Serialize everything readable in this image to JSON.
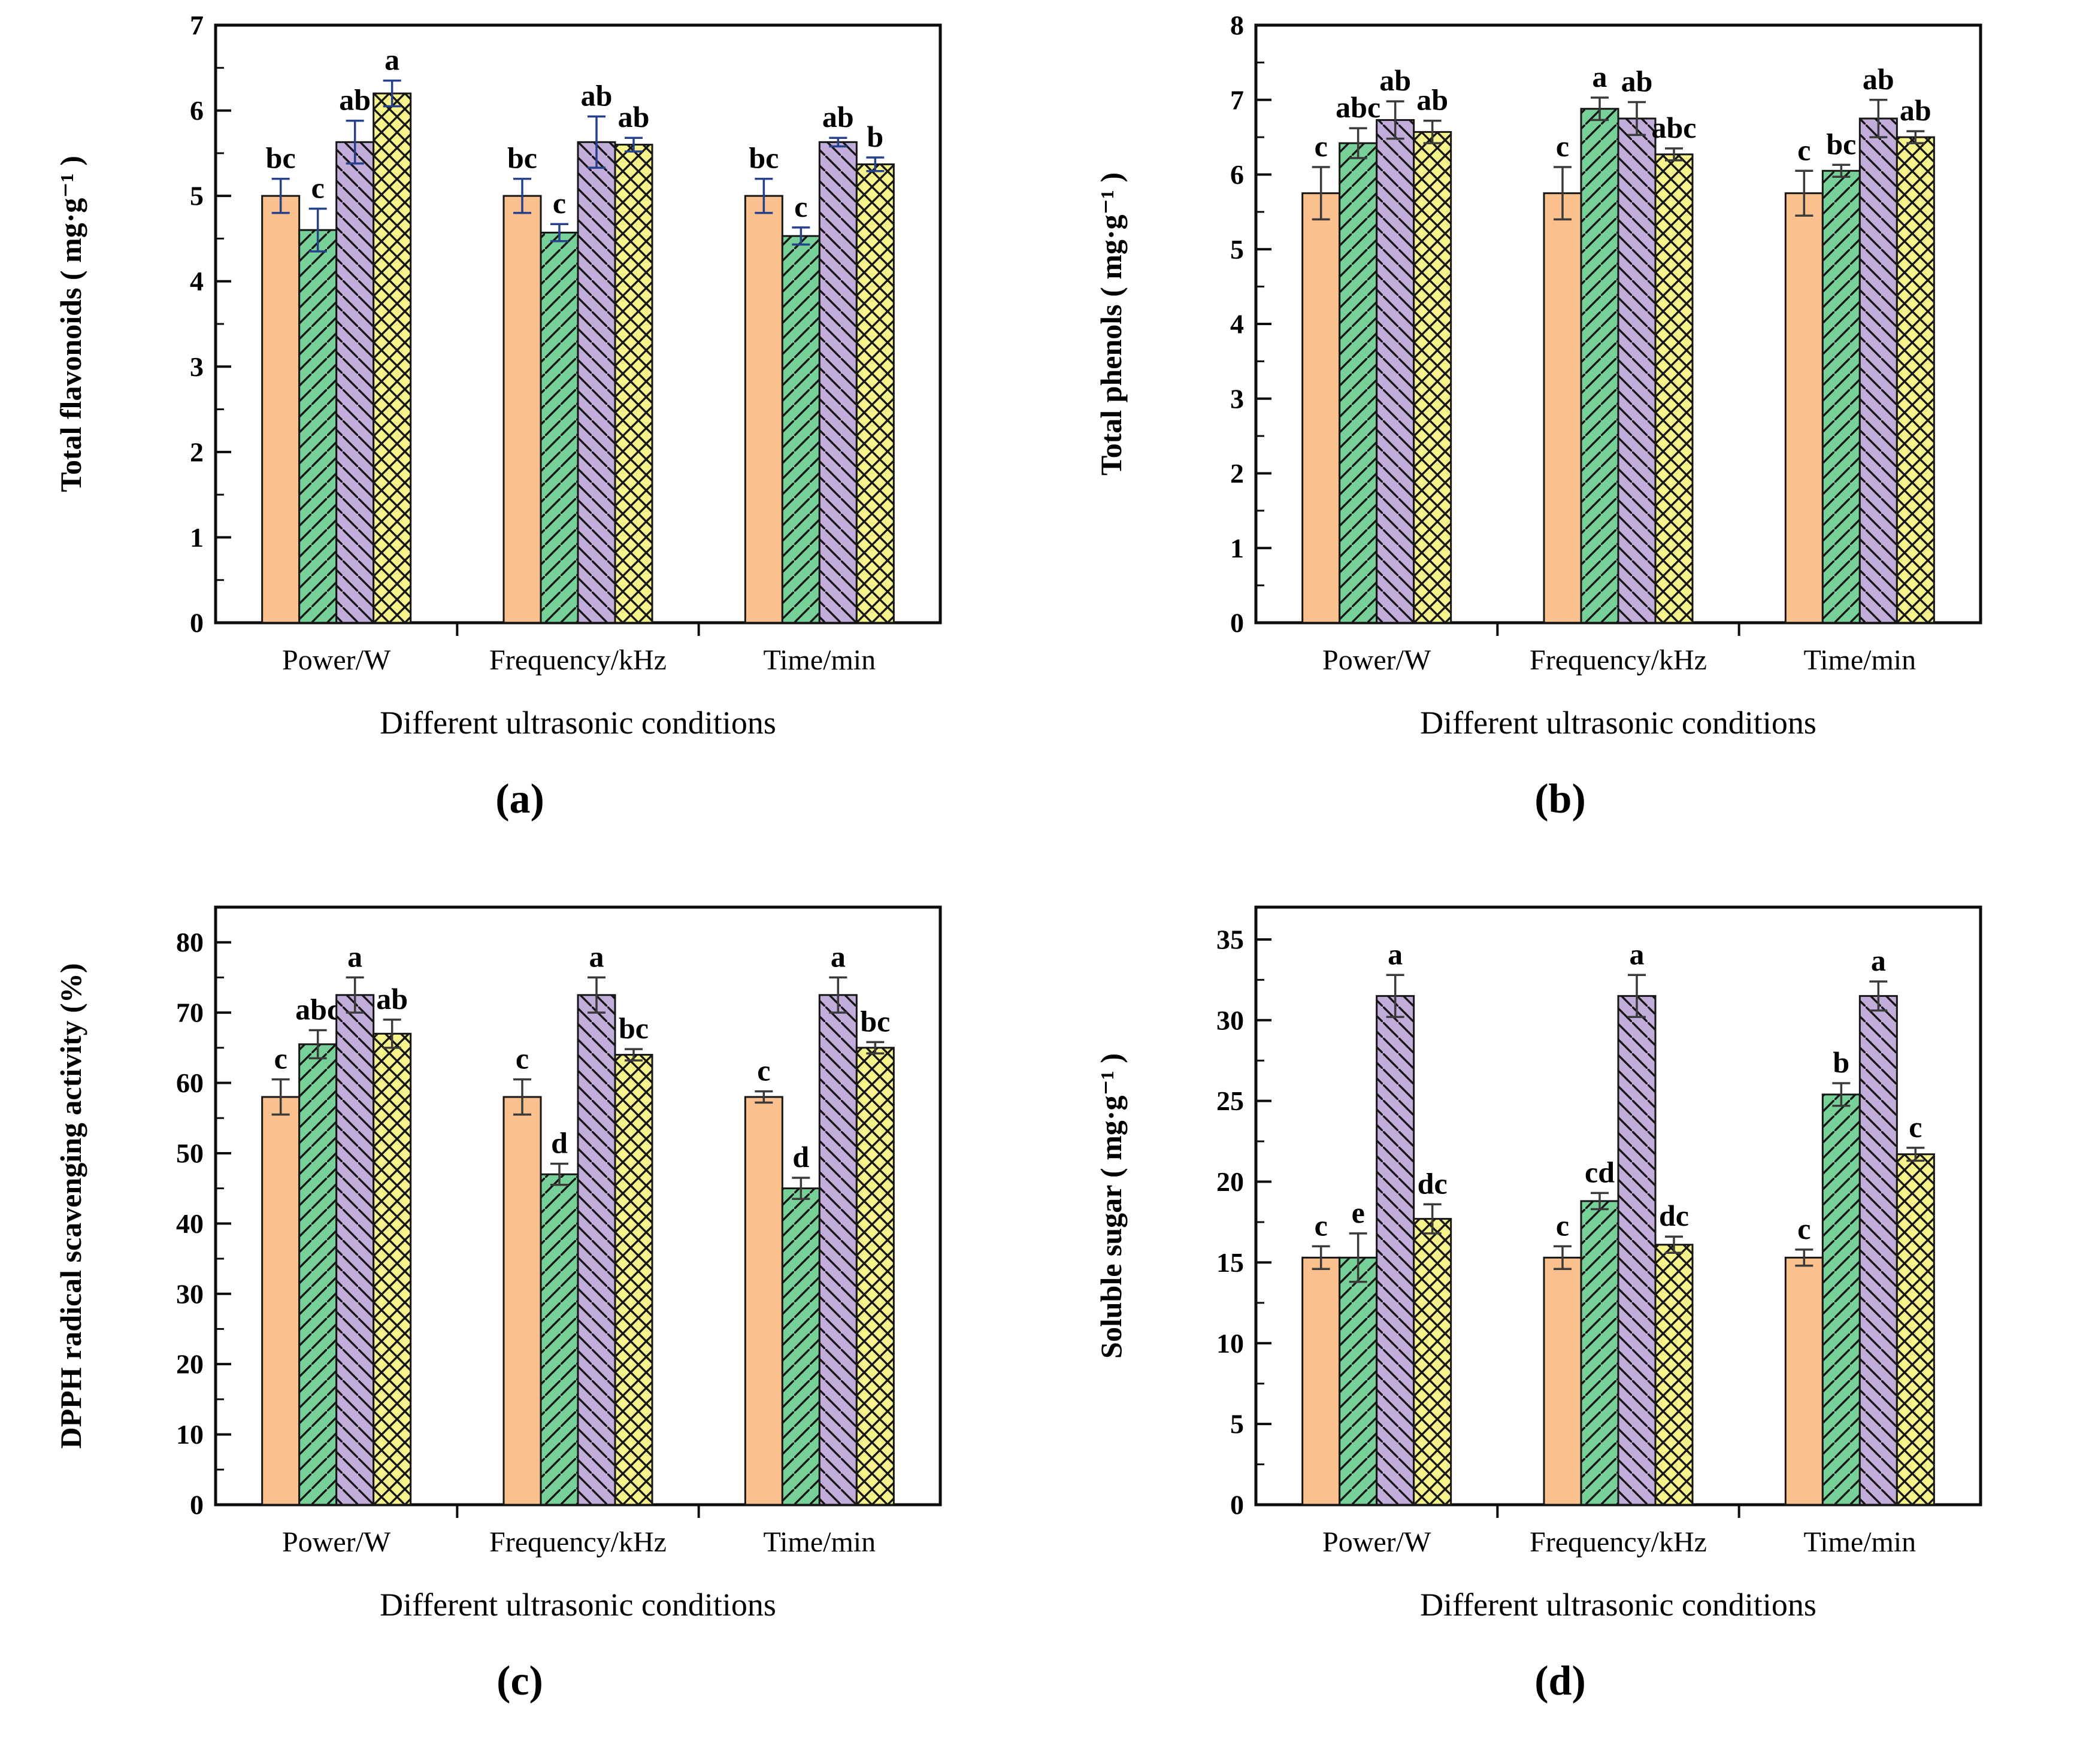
{
  "figure": {
    "captions": {
      "a": "(a)",
      "b": "(b)",
      "c": "(c)",
      "d": "(d)"
    },
    "xlabel": "Different ultrasonic conditions",
    "categories": [
      "Power/W",
      "Frequency/kHz",
      "Time/min"
    ],
    "style": {
      "axis_color": "#0d0d0d",
      "bar_stroke": "#161616",
      "hatch_color": "#151515",
      "text_color": "#000000",
      "series_colors": {
        "orange-solid": "#FAC18E",
        "green-diagonal": "#77D098",
        "purple-diagonal": "#C2ADDA",
        "yellow-crosshatch": "#F7F38C"
      }
    }
  },
  "chart_data": [
    {
      "id": "a",
      "type": "bar",
      "title": "",
      "ylabel": "Total flavonoids ( mg·g⁻¹ )",
      "xlabel": "Different ultrasonic conditions",
      "categories": [
        "Power/W",
        "Frequency/kHz",
        "Time/min"
      ],
      "ylim": [
        0,
        7
      ],
      "yticks": {
        "max": 7,
        "step": 1,
        "minor": 0.5
      },
      "grid": false,
      "legend": "none",
      "error_color": "#27408B",
      "series": [
        {
          "name": "orange-solid",
          "hatch": "none",
          "values": [
            5.0,
            5.0,
            5.0
          ],
          "errors": [
            0.2,
            0.2,
            0.2
          ],
          "letters": [
            "bc",
            "bc",
            "bc"
          ]
        },
        {
          "name": "green-diagonal",
          "hatch": "fwd",
          "values": [
            4.6,
            4.57,
            4.53
          ],
          "errors": [
            0.25,
            0.1,
            0.1
          ],
          "letters": [
            "c",
            "c",
            "c"
          ]
        },
        {
          "name": "purple-diagonal",
          "hatch": "back",
          "values": [
            5.63,
            5.63,
            5.63
          ],
          "errors": [
            0.25,
            0.3,
            0.05
          ],
          "letters": [
            "ab",
            "ab",
            "ab"
          ]
        },
        {
          "name": "yellow-crosshatch",
          "hatch": "cross",
          "values": [
            6.2,
            5.6,
            5.37
          ],
          "errors": [
            0.15,
            0.08,
            0.08
          ],
          "letters": [
            "a",
            "ab",
            "b"
          ]
        }
      ]
    },
    {
      "id": "b",
      "type": "bar",
      "title": "",
      "ylabel": "Total phenols ( mg·g⁻¹ )",
      "xlabel": "Different ultrasonic conditions",
      "categories": [
        "Power/W",
        "Frequency/kHz",
        "Time/min"
      ],
      "ylim": [
        0,
        8
      ],
      "yticks": {
        "max": 8,
        "step": 1,
        "minor": 0.5
      },
      "grid": false,
      "legend": "none",
      "error_color": "#3A3A3A",
      "series": [
        {
          "name": "orange-solid",
          "hatch": "none",
          "values": [
            5.75,
            5.75,
            5.75
          ],
          "errors": [
            0.35,
            0.35,
            0.3
          ],
          "letters": [
            "c",
            "c",
            "c"
          ]
        },
        {
          "name": "green-diagonal",
          "hatch": "fwd",
          "values": [
            6.42,
            6.88,
            6.05
          ],
          "errors": [
            0.2,
            0.15,
            0.08
          ],
          "letters": [
            "abc",
            "a",
            "bc"
          ]
        },
        {
          "name": "purple-diagonal",
          "hatch": "back",
          "values": [
            6.73,
            6.75,
            6.75
          ],
          "errors": [
            0.25,
            0.22,
            0.25
          ],
          "letters": [
            "ab",
            "ab",
            "ab"
          ]
        },
        {
          "name": "yellow-crosshatch",
          "hatch": "cross",
          "values": [
            6.57,
            6.27,
            6.5
          ],
          "errors": [
            0.15,
            0.08,
            0.08
          ],
          "letters": [
            "ab",
            "abc",
            "ab"
          ]
        }
      ]
    },
    {
      "id": "c",
      "type": "bar",
      "title": "",
      "ylabel": "DPPH radical scavenging activity (%)",
      "xlabel": "Different ultrasonic conditions",
      "categories": [
        "Power/W",
        "Frequency/kHz",
        "Time/min"
      ],
      "ylim": [
        0,
        85
      ],
      "yticks": {
        "max": 80,
        "step": 10,
        "minor": 5
      },
      "grid": false,
      "legend": "none",
      "error_color": "#3A3A3A",
      "series": [
        {
          "name": "orange-solid",
          "hatch": "none",
          "values": [
            58,
            58,
            58
          ],
          "errors": [
            2.5,
            2.5,
            0.8
          ],
          "letters": [
            "c",
            "c",
            "c"
          ]
        },
        {
          "name": "green-diagonal",
          "hatch": "fwd",
          "values": [
            65.5,
            47,
            45
          ],
          "errors": [
            2.0,
            1.5,
            1.5
          ],
          "letters": [
            "abc",
            "d",
            "d"
          ]
        },
        {
          "name": "purple-diagonal",
          "hatch": "back",
          "values": [
            72.5,
            72.5,
            72.5
          ],
          "errors": [
            2.5,
            2.5,
            2.5
          ],
          "letters": [
            "a",
            "a",
            "a"
          ]
        },
        {
          "name": "yellow-crosshatch",
          "hatch": "cross",
          "values": [
            67,
            64,
            65
          ],
          "errors": [
            2.0,
            0.8,
            0.8
          ],
          "letters": [
            "ab",
            "bc",
            "bc"
          ]
        }
      ]
    },
    {
      "id": "d",
      "type": "bar",
      "title": "",
      "ylabel": "Soluble sugar ( mg·g⁻¹ )",
      "xlabel": "Different ultrasonic conditions",
      "categories": [
        "Power/W",
        "Frequency/kHz",
        "Time/min"
      ],
      "ylim": [
        0,
        37
      ],
      "yticks": {
        "max": 35,
        "step": 5,
        "minor": 2.5
      },
      "grid": false,
      "legend": "none",
      "error_color": "#3A3A3A",
      "series": [
        {
          "name": "orange-solid",
          "hatch": "none",
          "values": [
            15.3,
            15.3,
            15.3
          ],
          "errors": [
            0.7,
            0.7,
            0.5
          ],
          "letters": [
            "c",
            "c",
            "c"
          ]
        },
        {
          "name": "green-diagonal",
          "hatch": "fwd",
          "values": [
            15.3,
            18.8,
            25.4
          ],
          "errors": [
            1.5,
            0.5,
            0.7
          ],
          "letters": [
            "e",
            "cd",
            "b"
          ]
        },
        {
          "name": "purple-diagonal",
          "hatch": "back",
          "values": [
            31.5,
            31.5,
            31.5
          ],
          "errors": [
            1.3,
            1.3,
            0.9
          ],
          "letters": [
            "a",
            "a",
            "a"
          ]
        },
        {
          "name": "yellow-crosshatch",
          "hatch": "cross",
          "values": [
            17.7,
            16.1,
            21.7
          ],
          "errors": [
            0.9,
            0.5,
            0.4
          ],
          "letters": [
            "dc",
            "dc",
            "c"
          ]
        }
      ]
    }
  ]
}
